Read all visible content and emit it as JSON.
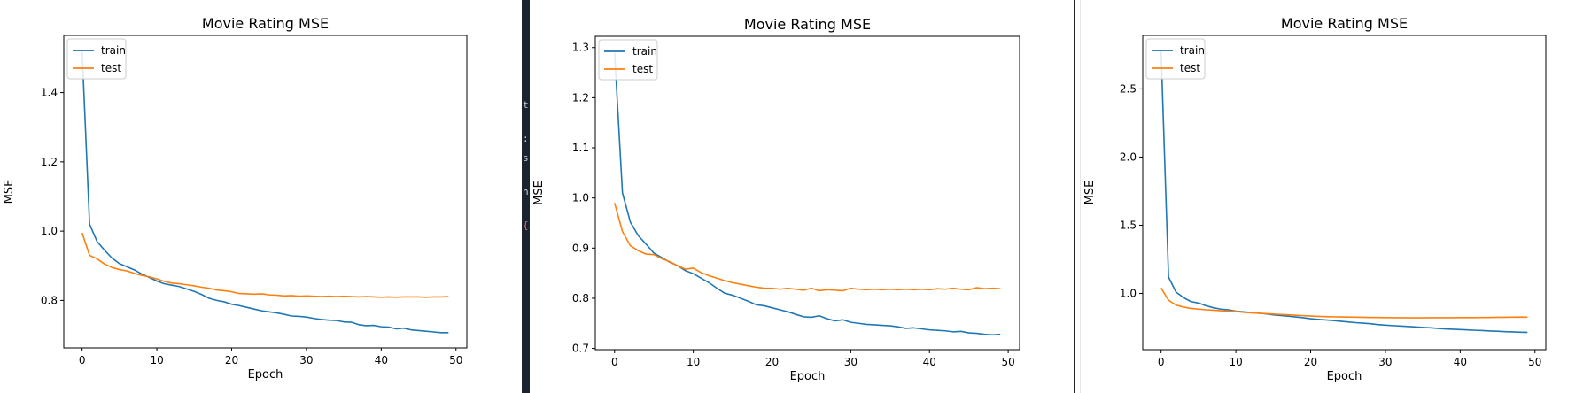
{
  "terminal_strip": {
    "glyphs": [
      "t",
      ":",
      "s",
      "n",
      "{i"
    ]
  },
  "chart_data": [
    {
      "type": "line",
      "title": "Movie Rating MSE",
      "xlabel": "Epoch",
      "ylabel": "MSE",
      "xlim": [
        -2.45,
        51.45
      ],
      "ylim": [
        0.663,
        1.565
      ],
      "xticks": [
        0,
        10,
        20,
        30,
        40,
        50
      ],
      "xtick_labels": [
        "0",
        "10",
        "20",
        "30",
        "40",
        "50"
      ],
      "yticks": [
        0.8,
        1.0,
        1.2,
        1.4
      ],
      "ytick_labels": [
        "0.8",
        "1.0",
        "1.2",
        "1.4"
      ],
      "legend": "upper-left",
      "grid": false,
      "series": [
        {
          "name": "train",
          "color": "#1f77b4",
          "values": [
            1.52,
            1.02,
            0.97,
            0.945,
            0.922,
            0.906,
            0.897,
            0.888,
            0.876,
            0.866,
            0.856,
            0.848,
            0.844,
            0.84,
            0.833,
            0.826,
            0.817,
            0.806,
            0.8,
            0.796,
            0.789,
            0.785,
            0.78,
            0.775,
            0.77,
            0.767,
            0.764,
            0.76,
            0.755,
            0.754,
            0.752,
            0.748,
            0.745,
            0.743,
            0.742,
            0.738,
            0.737,
            0.73,
            0.727,
            0.728,
            0.724,
            0.723,
            0.718,
            0.72,
            0.715,
            0.713,
            0.711,
            0.709,
            0.707,
            0.707
          ]
        },
        {
          "name": "test",
          "color": "#ff7f0e",
          "values": [
            0.995,
            0.93,
            0.92,
            0.905,
            0.895,
            0.889,
            0.885,
            0.878,
            0.872,
            0.868,
            0.862,
            0.855,
            0.85,
            0.848,
            0.845,
            0.842,
            0.838,
            0.835,
            0.83,
            0.828,
            0.825,
            0.82,
            0.819,
            0.818,
            0.819,
            0.816,
            0.815,
            0.813,
            0.814,
            0.812,
            0.813,
            0.812,
            0.811,
            0.812,
            0.811,
            0.812,
            0.811,
            0.81,
            0.811,
            0.81,
            0.809,
            0.81,
            0.809,
            0.81,
            0.81,
            0.81,
            0.809,
            0.81,
            0.81,
            0.811
          ]
        }
      ]
    },
    {
      "type": "line",
      "title": "Movie Rating MSE",
      "xlabel": "Epoch",
      "ylabel": "MSE",
      "xlim": [
        -2.45,
        51.45
      ],
      "ylim": [
        0.6975,
        1.3225
      ],
      "xticks": [
        0,
        10,
        20,
        30,
        40,
        50
      ],
      "xtick_labels": [
        "0",
        "10",
        "20",
        "30",
        "40",
        "50"
      ],
      "yticks": [
        0.7,
        0.8,
        0.9,
        1.0,
        1.1,
        1.2,
        1.3
      ],
      "ytick_labels": [
        "0.7",
        "0.8",
        "0.9",
        "1.0",
        "1.1",
        "1.2",
        "1.3"
      ],
      "legend": "upper-left",
      "grid": false,
      "series": [
        {
          "name": "train",
          "color": "#1f77b4",
          "values": [
            1.29,
            1.01,
            0.952,
            0.925,
            0.908,
            0.89,
            0.881,
            0.872,
            0.865,
            0.855,
            0.849,
            0.84,
            0.831,
            0.82,
            0.81,
            0.806,
            0.8,
            0.794,
            0.787,
            0.785,
            0.781,
            0.777,
            0.773,
            0.768,
            0.763,
            0.762,
            0.765,
            0.759,
            0.755,
            0.757,
            0.752,
            0.75,
            0.748,
            0.747,
            0.746,
            0.745,
            0.743,
            0.74,
            0.741,
            0.739,
            0.737,
            0.736,
            0.735,
            0.733,
            0.734,
            0.731,
            0.73,
            0.728,
            0.727,
            0.728
          ]
        },
        {
          "name": "test",
          "color": "#ff7f0e",
          "values": [
            0.99,
            0.933,
            0.905,
            0.895,
            0.888,
            0.887,
            0.879,
            0.873,
            0.865,
            0.858,
            0.86,
            0.851,
            0.845,
            0.84,
            0.835,
            0.831,
            0.828,
            0.825,
            0.822,
            0.82,
            0.82,
            0.818,
            0.82,
            0.818,
            0.816,
            0.82,
            0.815,
            0.817,
            0.816,
            0.815,
            0.82,
            0.818,
            0.817,
            0.818,
            0.817,
            0.818,
            0.817,
            0.818,
            0.817,
            0.818,
            0.817,
            0.819,
            0.818,
            0.82,
            0.818,
            0.817,
            0.821,
            0.819,
            0.82,
            0.819
          ]
        }
      ]
    },
    {
      "type": "line",
      "title": "Movie Rating MSE",
      "xlabel": "Epoch",
      "ylabel": "MSE",
      "xlim": [
        -2.45,
        51.45
      ],
      "ylim": [
        0.588,
        2.892
      ],
      "xticks": [
        0,
        10,
        20,
        30,
        40,
        50
      ],
      "xtick_labels": [
        "0",
        "10",
        "20",
        "30",
        "40",
        "50"
      ],
      "yticks": [
        1.0,
        1.5,
        2.0,
        2.5
      ],
      "ytick_labels": [
        "1.0",
        "1.5",
        "2.0",
        "2.5"
      ],
      "legend": "upper-left",
      "grid": false,
      "series": [
        {
          "name": "train",
          "color": "#1f77b4",
          "values": [
            2.78,
            1.12,
            1.01,
            0.97,
            0.94,
            0.93,
            0.91,
            0.895,
            0.885,
            0.88,
            0.87,
            0.865,
            0.86,
            0.855,
            0.85,
            0.843,
            0.838,
            0.833,
            0.828,
            0.822,
            0.815,
            0.81,
            0.806,
            0.802,
            0.796,
            0.791,
            0.786,
            0.782,
            0.778,
            0.772,
            0.768,
            0.764,
            0.761,
            0.758,
            0.755,
            0.751,
            0.748,
            0.744,
            0.74,
            0.738,
            0.735,
            0.733,
            0.73,
            0.728,
            0.725,
            0.723,
            0.72,
            0.718,
            0.716,
            0.715
          ]
        },
        {
          "name": "test",
          "color": "#ff7f0e",
          "values": [
            1.04,
            0.95,
            0.915,
            0.9,
            0.89,
            0.885,
            0.88,
            0.877,
            0.873,
            0.87,
            0.868,
            0.862,
            0.858,
            0.855,
            0.852,
            0.849,
            0.846,
            0.843,
            0.84,
            0.837,
            0.834,
            0.832,
            0.83,
            0.829,
            0.828,
            0.827,
            0.826,
            0.825,
            0.824,
            0.824,
            0.823,
            0.822,
            0.822,
            0.821,
            0.821,
            0.821,
            0.822,
            0.822,
            0.822,
            0.822,
            0.823,
            0.823,
            0.823,
            0.824,
            0.824,
            0.825,
            0.825,
            0.826,
            0.827,
            0.826
          ]
        }
      ]
    }
  ]
}
